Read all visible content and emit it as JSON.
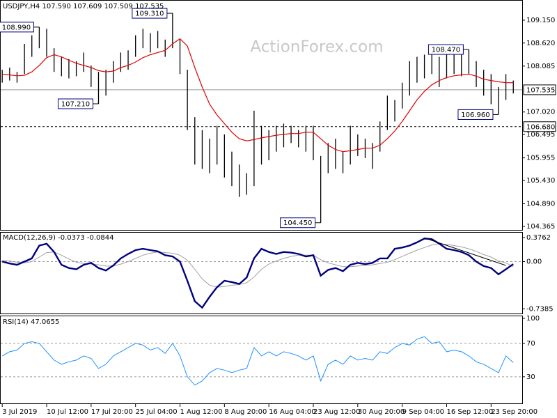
{
  "chart_data": [
    {
      "type": "ohlc",
      "title": "USDJPY,H4 107.590 107.609 107.509 107.535",
      "watermark": "ActionForex.com",
      "color": "#000000",
      "high": [
        108.0,
        108.05,
        107.95,
        108.6,
        108.8,
        108.99,
        108.95,
        108.5,
        108.3,
        108.25,
        108.2,
        108.4,
        108.1,
        107.95,
        108.0,
        108.2,
        108.4,
        108.45,
        108.8,
        108.95,
        108.85,
        108.9,
        108.7,
        109.31,
        108.7,
        108.0,
        106.9,
        106.6,
        106.4,
        106.7,
        106.5,
        106.1,
        105.8,
        105.6,
        107.05,
        106.7,
        106.6,
        106.7,
        106.75,
        106.7,
        106.6,
        106.7,
        106.7,
        106.0,
        106.3,
        106.4,
        106.1,
        106.7,
        106.5,
        106.4,
        106.3,
        106.8,
        107.4,
        107.3,
        107.7,
        108.2,
        108.3,
        108.35,
        108.4,
        108.3,
        108.45,
        108.4,
        108.35,
        108.47,
        108.2,
        108.0,
        107.9,
        107.6,
        107.9,
        107.75
      ],
      "low": [
        107.7,
        107.75,
        107.7,
        107.9,
        108.3,
        108.5,
        108.3,
        107.95,
        107.85,
        107.8,
        107.85,
        107.95,
        107.6,
        107.21,
        107.4,
        107.7,
        107.95,
        108.0,
        108.3,
        108.5,
        108.4,
        108.5,
        108.3,
        108.5,
        107.9,
        106.6,
        105.8,
        105.7,
        105.6,
        105.8,
        105.5,
        105.3,
        105.05,
        105.1,
        105.3,
        105.8,
        105.9,
        106.1,
        106.2,
        106.3,
        106.2,
        106.1,
        105.9,
        104.45,
        105.6,
        105.7,
        105.6,
        105.8,
        106.0,
        105.95,
        105.7,
        106.1,
        106.6,
        106.8,
        107.1,
        107.4,
        107.7,
        107.8,
        107.9,
        107.6,
        107.8,
        107.9,
        107.85,
        107.9,
        107.6,
        107.4,
        107.2,
        106.96,
        107.3,
        107.45
      ],
      "ma": {
        "color": "#e00000",
        "values": [
          107.9,
          107.88,
          107.86,
          107.87,
          107.95,
          108.1,
          108.28,
          108.35,
          108.3,
          108.22,
          108.15,
          108.1,
          108.05,
          107.98,
          107.95,
          107.97,
          108.05,
          108.1,
          108.18,
          108.28,
          108.35,
          108.4,
          108.45,
          108.6,
          108.72,
          108.55,
          108.05,
          107.6,
          107.2,
          106.95,
          106.75,
          106.55,
          106.4,
          106.35,
          106.38,
          106.42,
          106.45,
          106.48,
          106.5,
          106.52,
          106.52,
          106.55,
          106.55,
          106.4,
          106.25,
          106.15,
          106.1,
          106.12,
          106.15,
          106.18,
          106.18,
          106.25,
          106.4,
          106.58,
          106.8,
          107.05,
          107.3,
          107.5,
          107.65,
          107.75,
          107.82,
          107.86,
          107.88,
          107.9,
          107.85,
          107.78,
          107.75,
          107.72,
          107.7,
          107.7
        ]
      },
      "xlim": [
        -0.3,
        70.2
      ],
      "xticks": [
        {
          "value": 0,
          "label": "3 Jul 2019"
        },
        {
          "value": 6,
          "label": "10 Jul 12:00"
        },
        {
          "value": 12,
          "label": "17 Jul 20:00"
        },
        {
          "value": 18,
          "label": "25 Jul 04:00"
        },
        {
          "value": 24,
          "label": "1 Aug 12:00"
        },
        {
          "value": 30,
          "label": "8 Aug 20:00"
        },
        {
          "value": 36,
          "label": "16 Aug 04:00"
        },
        {
          "value": 42,
          "label": "23 Aug 12:00"
        },
        {
          "value": 48,
          "label": "30 Aug 20:00"
        },
        {
          "value": 54,
          "label": "9 Sep 04:00"
        },
        {
          "value": 60,
          "label": "16 Sep 12:00"
        },
        {
          "value": 66,
          "label": "23 Sep 20:00"
        }
      ],
      "ylim": [
        104.284,
        109.57
      ],
      "yticks": [
        {
          "value": 109.15,
          "label": "109.150"
        },
        {
          "value": 108.62,
          "label": "108.620"
        },
        {
          "value": 108.085,
          "label": "108.085"
        },
        {
          "value": 107.02,
          "label": "107.020"
        },
        {
          "value": 106.495,
          "label": "106.495"
        },
        {
          "value": 105.955,
          "label": "105.955"
        },
        {
          "value": 105.43,
          "label": "105.430"
        },
        {
          "value": 104.89,
          "label": "104.890"
        },
        {
          "value": 104.365,
          "label": "104.365"
        }
      ],
      "price_line": {
        "value": 107.535,
        "label": "107.535"
      },
      "level": {
        "value": 106.68,
        "label": "106.680"
      },
      "annotations": [
        {
          "index": 5,
          "value": 108.99,
          "label": "108.990"
        },
        {
          "index": 13,
          "value": 107.21,
          "label": "107.210"
        },
        {
          "index": 23,
          "value": 109.31,
          "label": "109.310"
        },
        {
          "index": 43,
          "value": 104.45,
          "label": "104.450"
        },
        {
          "index": 63,
          "value": 108.47,
          "label": "108.470"
        },
        {
          "index": 67,
          "value": 106.96,
          "label": "106.960"
        }
      ]
    },
    {
      "type": "macd",
      "label": "MACD(12,26,9) -0.0373 -0.0844",
      "macd": {
        "color": "#00007f",
        "values": [
          0.0,
          -0.03,
          -0.05,
          0.0,
          0.05,
          0.25,
          0.28,
          0.15,
          -0.05,
          -0.1,
          -0.12,
          -0.05,
          -0.02,
          -0.1,
          -0.14,
          -0.06,
          0.05,
          0.12,
          0.18,
          0.2,
          0.18,
          0.16,
          0.1,
          0.08,
          0.0,
          -0.3,
          -0.62,
          -0.72,
          -0.55,
          -0.4,
          -0.3,
          -0.32,
          -0.35,
          -0.25,
          0.05,
          0.2,
          0.15,
          0.12,
          0.15,
          0.14,
          0.12,
          0.08,
          0.1,
          -0.22,
          -0.13,
          -0.1,
          -0.15,
          -0.05,
          -0.02,
          -0.04,
          -0.02,
          0.05,
          0.05,
          0.2,
          0.22,
          0.25,
          0.3,
          0.36,
          0.35,
          0.28,
          0.2,
          0.18,
          0.15,
          0.1,
          0.0,
          -0.07,
          -0.1,
          -0.2,
          -0.12,
          -0.04
        ]
      },
      "signal": {
        "color": "#a0a0a0",
        "values": [
          0.02,
          0.01,
          -0.01,
          -0.02,
          0.0,
          0.07,
          0.14,
          0.15,
          0.1,
          0.04,
          -0.01,
          -0.03,
          -0.04,
          -0.05,
          -0.07,
          -0.07,
          -0.04,
          0.0,
          0.05,
          0.1,
          0.13,
          0.15,
          0.14,
          0.13,
          0.1,
          0.02,
          -0.12,
          -0.27,
          -0.37,
          -0.4,
          -0.39,
          -0.37,
          -0.36,
          -0.33,
          -0.24,
          -0.12,
          -0.04,
          0.01,
          0.05,
          0.08,
          0.1,
          0.1,
          0.1,
          0.03,
          -0.02,
          -0.05,
          -0.08,
          -0.08,
          -0.07,
          -0.06,
          -0.05,
          -0.03,
          -0.01,
          0.03,
          0.08,
          0.13,
          0.18,
          0.22,
          0.26,
          0.28,
          0.27,
          0.25,
          0.23,
          0.2,
          0.16,
          0.11,
          0.07,
          0.01,
          -0.02,
          -0.08
        ]
      },
      "trendline": {
        "x": [
          57,
          68
        ],
        "values": [
          0.37,
          -0.06
        ]
      },
      "ylim": [
        -0.79,
        0.43
      ],
      "yticks": [
        0.3762,
        {
          "value": 0,
          "label": "0.00"
        },
        -0.7385
      ]
    },
    {
      "type": "rsi",
      "label": "RSI(14) 47.0655",
      "color": "#1e90ff",
      "values": [
        55,
        60,
        62,
        70,
        72,
        70,
        60,
        50,
        45,
        48,
        50,
        55,
        52,
        40,
        45,
        55,
        60,
        65,
        70,
        68,
        62,
        65,
        58,
        70,
        55,
        30,
        20,
        25,
        35,
        40,
        38,
        35,
        38,
        40,
        65,
        55,
        60,
        55,
        60,
        58,
        55,
        50,
        55,
        25,
        45,
        50,
        45,
        55,
        50,
        52,
        50,
        60,
        58,
        65,
        70,
        68,
        75,
        78,
        70,
        72,
        60,
        62,
        60,
        55,
        48,
        45,
        40,
        35,
        55,
        47.07
      ],
      "ylim": [
        -1,
        100.8
      ],
      "yticks": [
        100,
        70,
        30
      ],
      "levels": [
        70,
        30
      ]
    }
  ]
}
